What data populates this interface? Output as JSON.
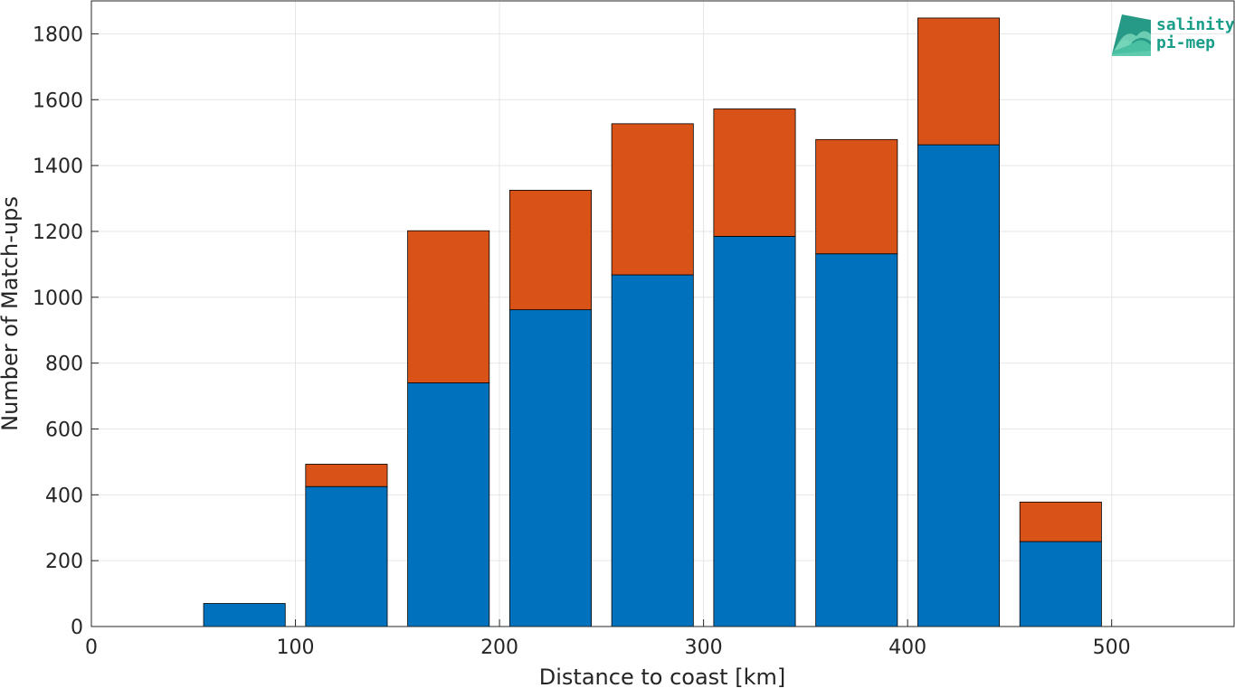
{
  "chart_data": {
    "type": "bar",
    "stacked": true,
    "x": [
      25,
      75,
      125,
      175,
      225,
      275,
      325,
      375,
      425,
      475,
      525
    ],
    "series": [
      {
        "values": [
          0,
          70,
          425,
          740,
          962,
          1068,
          1185,
          1132,
          1463,
          258,
          0
        ],
        "color": "#0072BD"
      },
      {
        "values": [
          0,
          0,
          68,
          462,
          363,
          459,
          387,
          347,
          385,
          120,
          0
        ],
        "color": "#D95319"
      }
    ],
    "bar_width": 40,
    "xlabel": "Distance to coast [km]",
    "ylabel": "Number of Match-ups",
    "xlim": [
      0,
      560
    ],
    "ylim": [
      0,
      1900
    ],
    "xticks": [
      0,
      100,
      200,
      300,
      400,
      500
    ],
    "yticks": [
      0,
      200,
      400,
      600,
      800,
      1000,
      1200,
      1400,
      1600,
      1800
    ],
    "grid": true
  },
  "logo": {
    "line1": "salinity",
    "line2": "pi-mep"
  }
}
